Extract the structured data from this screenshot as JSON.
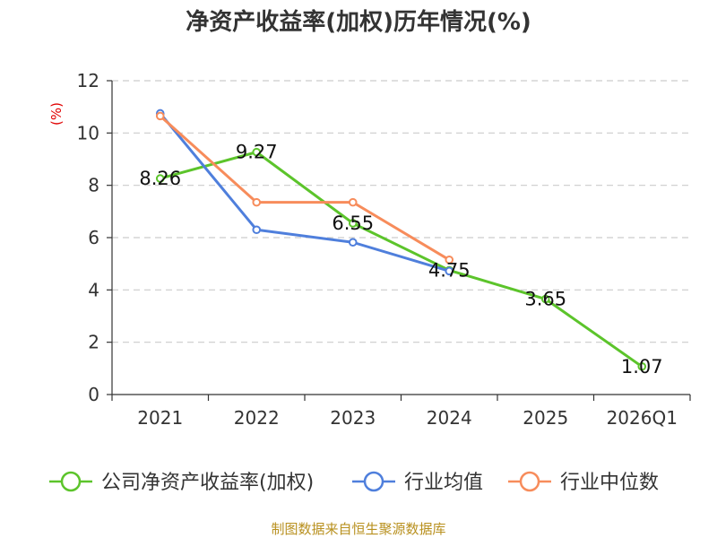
{
  "chart_data": {
    "type": "line",
    "title": "净资产收益率(加权)历年情况(%)",
    "ylabel": "(%)",
    "xlabel": "",
    "categories": [
      "2021",
      "2022",
      "2023",
      "2024",
      "2025",
      "2026Q1"
    ],
    "ylim": [
      0,
      12
    ],
    "yticks": [
      0,
      2,
      4,
      6,
      8,
      10,
      12
    ],
    "grid": true,
    "legend_position": "bottom",
    "series": [
      {
        "name": "公司净资产收益率(加权)",
        "color": "#5cc42b",
        "values": [
          8.26,
          9.27,
          6.55,
          4.75,
          3.65,
          1.07
        ],
        "labels": [
          "8.26",
          "9.27",
          "6.55",
          "4.75",
          "3.65",
          "1.07"
        ]
      },
      {
        "name": "行业均值",
        "color": "#4f7fdc",
        "values": [
          10.75,
          6.3,
          5.82,
          4.72,
          null,
          null
        ]
      },
      {
        "name": "行业中位数",
        "color": "#f78c5b",
        "values": [
          10.65,
          7.35,
          7.35,
          5.15,
          null,
          null
        ]
      }
    ],
    "source": "制图数据来自恒生聚源数据库"
  }
}
